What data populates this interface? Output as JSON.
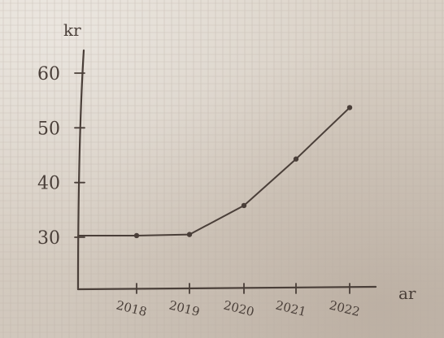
{
  "chart_data": {
    "type": "line",
    "title": "",
    "xlabel": "ar",
    "ylabel": "kr",
    "categories": [
      "2018",
      "2019",
      "2020",
      "2021",
      "2022"
    ],
    "series": [
      {
        "values": [
          30.3,
          30.5,
          35.8,
          44.3,
          53.7
        ]
      }
    ],
    "y_ticks": [
      "30",
      "40",
      "50",
      "60"
    ],
    "ylim": [
      30,
      60
    ],
    "grid": true,
    "legend": "none",
    "medium": "hand-drawn pencil sketch on grid paper",
    "colors": {
      "paper": "#d9d0c6",
      "grid": "#b9aea3",
      "pencil": "#4a3f39"
    }
  }
}
